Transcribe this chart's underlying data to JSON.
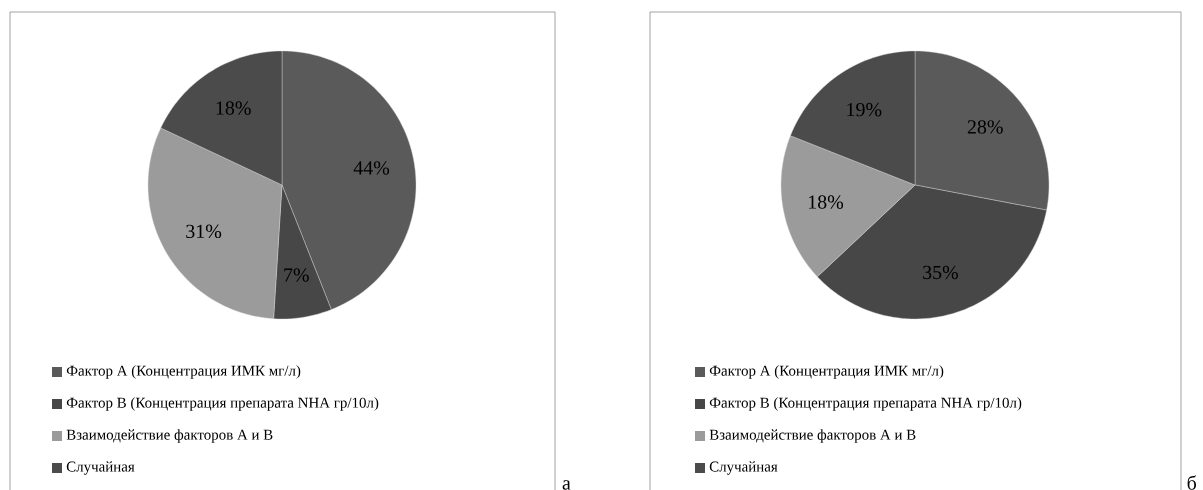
{
  "chart_data": [
    {
      "type": "pie",
      "categories": [
        "Фактор А (Концентрация ИМК мг/л)",
        "Фактор В (Концентрация препарата NHA гр/10л)",
        "Взаимодействие факторов А и В",
        "Случайная"
      ],
      "values": [
        44,
        7,
        31,
        18
      ],
      "colors": [
        "#5a5a5a",
        "#474747",
        "#9b9b9b",
        "#4b4b4b"
      ],
      "value_labels": [
        "44%",
        "7%",
        "31%",
        "18%"
      ],
      "legend": "bottom",
      "annotations": [
        "а"
      ]
    },
    {
      "type": "pie",
      "categories": [
        "Фактор А (Концентрация ИМК мг/л)",
        "Фактор В (Концентрация препарата NHA гр/10л)",
        "Взаимодействие факторов А и В",
        "Случайная"
      ],
      "values": [
        28,
        35,
        18,
        19
      ],
      "colors": [
        "#5a5a5a",
        "#474747",
        "#9b9b9b",
        "#4b4b4b"
      ],
      "value_labels": [
        "28%",
        "35%",
        "18%",
        "19%"
      ],
      "legend": "bottom",
      "annotations": [
        "б"
      ]
    }
  ]
}
